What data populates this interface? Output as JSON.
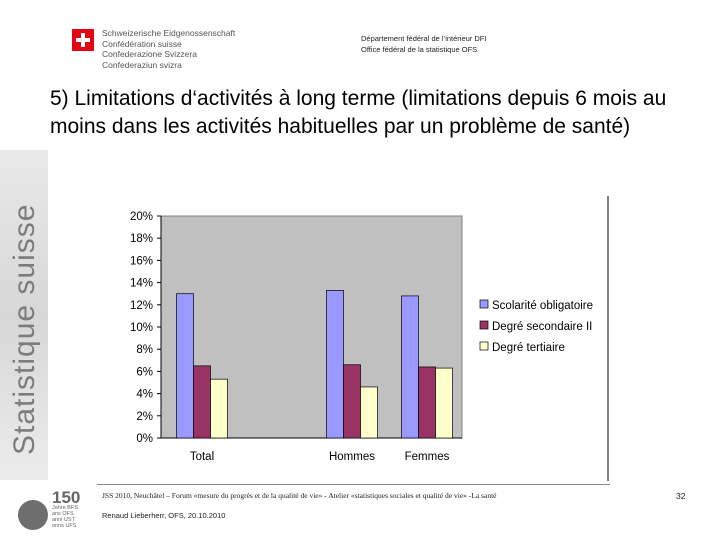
{
  "header": {
    "confederation_lines": [
      "Schweizerische Eidgenossenschaft",
      "Confédération suisse",
      "Confederazione Svizzera",
      "Confederaziun svizra"
    ],
    "department_lines": [
      "Département fédéral de l’intérieur DFI",
      "Office fédéral de la statistique OFS"
    ]
  },
  "sidebar": {
    "text": "Statistique suisse"
  },
  "slide": {
    "title": "5) Limitations d‘activités à long terme (limitations depuis 6 mois au moins dans les activités habituelles par un problème de santé)"
  },
  "chart_data": {
    "type": "bar",
    "categories": [
      "Total",
      "Hommes",
      "Femmes"
    ],
    "category_positions": [
      0,
      1,
      1.5
    ],
    "series": [
      {
        "name": "Scolarité obligatoire",
        "values": [
          13.0,
          13.3,
          12.8
        ],
        "color": "#9999ff"
      },
      {
        "name": "Degré secondaire II",
        "values": [
          6.5,
          6.6,
          6.4
        ],
        "color": "#993366"
      },
      {
        "name": "Degré tertiaire",
        "values": [
          5.3,
          4.6,
          6.3
        ],
        "color": "#ffffcc"
      }
    ],
    "y_ticks": [
      "0%",
      "2%",
      "4%",
      "6%",
      "8%",
      "10%",
      "12%",
      "14%",
      "16%",
      "18%",
      "20%"
    ],
    "ylim": [
      0,
      20
    ],
    "plot_background": "#c0c0c0",
    "grid": false,
    "legend_position": "right"
  },
  "footer": {
    "line1": "JSS 2010, Neuchâtel – Forum «mesure du progrès et de la qualité de vie» - Atelier «statistiques sociales et qualité de vie» -La santé",
    "line2": "Renaud Lieberherr, OFS, 20.10.2010",
    "page_number": "32",
    "logo_number": "150",
    "logo_lines": [
      "Jahre BFS",
      "ans OFS",
      "anni UST",
      "onns UFS"
    ]
  }
}
